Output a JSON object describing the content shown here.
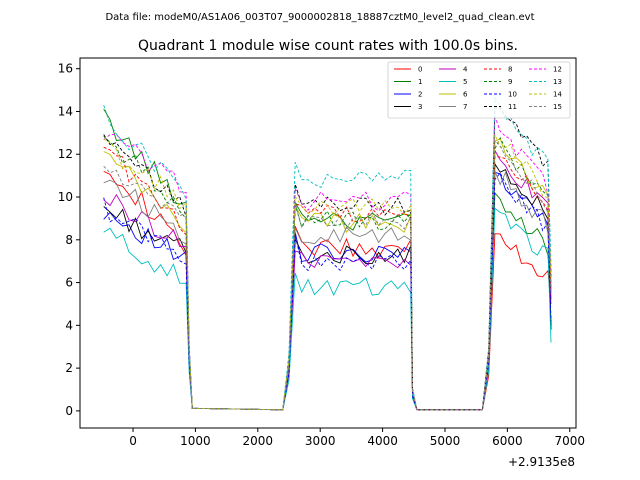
{
  "chart_data": {
    "type": "line",
    "suptitle": "Data file: modeM0/AS1A06_003T07_9000002818_18887cztM0_level2_quad_clean.evt",
    "title": "Quadrant 1 module wise count rates with 100.0s bins.",
    "xlabel": "",
    "ylabel": "",
    "x_offset_label": "+2.9135e8",
    "xlim": [
      -850,
      7100
    ],
    "ylim": [
      -0.8,
      16.5
    ],
    "xticks": [
      0,
      1000,
      2000,
      3000,
      4000,
      5000,
      6000,
      7000
    ],
    "xtick_labels": [
      "0",
      "1000",
      "2000",
      "3000",
      "4000",
      "5000",
      "6000",
      "7000"
    ],
    "yticks": [
      0,
      2,
      4,
      6,
      8,
      10,
      12,
      14,
      16
    ],
    "ytick_labels": [
      "0",
      "2",
      "4",
      "6",
      "8",
      "10",
      "12",
      "14",
      "16"
    ],
    "legend_position": "top-right",
    "legend_columns": 4,
    "segments": [
      {
        "start": -470,
        "end": 1000,
        "rise_at": null,
        "drop_at": 850,
        "points": 14
      },
      {
        "start": 2400,
        "end": 4550,
        "rise_at": 2600,
        "drop_at": 4450,
        "points": 21
      },
      {
        "start": 5600,
        "end": 6700,
        "rise_at": 5800,
        "drop_at": 6650,
        "points": 11
      }
    ],
    "series": [
      {
        "name": "0",
        "color": "#ff0000",
        "dash": false,
        "levels": [
          11.7,
          7.5,
          7.6,
          8.2,
          5.0
        ]
      },
      {
        "name": "1",
        "color": "#008000",
        "dash": false,
        "levels": [
          13.7,
          9.6,
          8.9,
          9.8,
          6.0
        ]
      },
      {
        "name": "2",
        "color": "#0000ff",
        "dash": false,
        "levels": [
          9.4,
          7.0,
          7.4,
          11.2,
          4.0
        ]
      },
      {
        "name": "3",
        "color": "#000000",
        "dash": false,
        "levels": [
          9.5,
          7.4,
          7.3,
          11.8,
          3.8
        ]
      },
      {
        "name": "4",
        "color": "#bf00bf",
        "dash": false,
        "levels": [
          10.0,
          7.8,
          7.0,
          12.0,
          5.2
        ]
      },
      {
        "name": "5",
        "color": "#00bfbf",
        "dash": false,
        "levels": [
          8.4,
          6.0,
          5.8,
          9.2,
          3.2
        ]
      },
      {
        "name": "6",
        "color": "#bfbf00",
        "dash": false,
        "levels": [
          12.0,
          8.6,
          8.8,
          12.8,
          6.0
        ]
      },
      {
        "name": "7",
        "color": "#808080",
        "dash": false,
        "levels": [
          11.0,
          8.2,
          8.2,
          11.2,
          5.5
        ]
      },
      {
        "name": "8",
        "color": "#ff0000",
        "dash": true,
        "levels": [
          12.5,
          8.3,
          9.2,
          12.2,
          5.6
        ]
      },
      {
        "name": "9",
        "color": "#008000",
        "dash": true,
        "levels": [
          12.8,
          9.4,
          8.9,
          12.6,
          5.8
        ]
      },
      {
        "name": "10",
        "color": "#0000ff",
        "dash": true,
        "levels": [
          9.5,
          7.2,
          7.0,
          11.0,
          4.2
        ]
      },
      {
        "name": "11",
        "color": "#000000",
        "dash": true,
        "levels": [
          12.6,
          9.5,
          9.6,
          14.5,
          6.2
        ]
      },
      {
        "name": "12",
        "color": "#ff00ff",
        "dash": true,
        "levels": [
          13.0,
          10.5,
          9.8,
          13.5,
          6.5
        ]
      },
      {
        "name": "13",
        "color": "#00bfbf",
        "dash": true,
        "levels": [
          13.8,
          10.2,
          10.9,
          14.6,
          6.8
        ]
      },
      {
        "name": "14",
        "color": "#bfbf00",
        "dash": true,
        "levels": [
          12.4,
          9.6,
          9.5,
          13.0,
          6.1
        ]
      },
      {
        "name": "15",
        "color": "#808080",
        "dash": true,
        "levels": [
          11.5,
          8.8,
          8.9,
          12.3,
          5.6
        ]
      }
    ]
  }
}
